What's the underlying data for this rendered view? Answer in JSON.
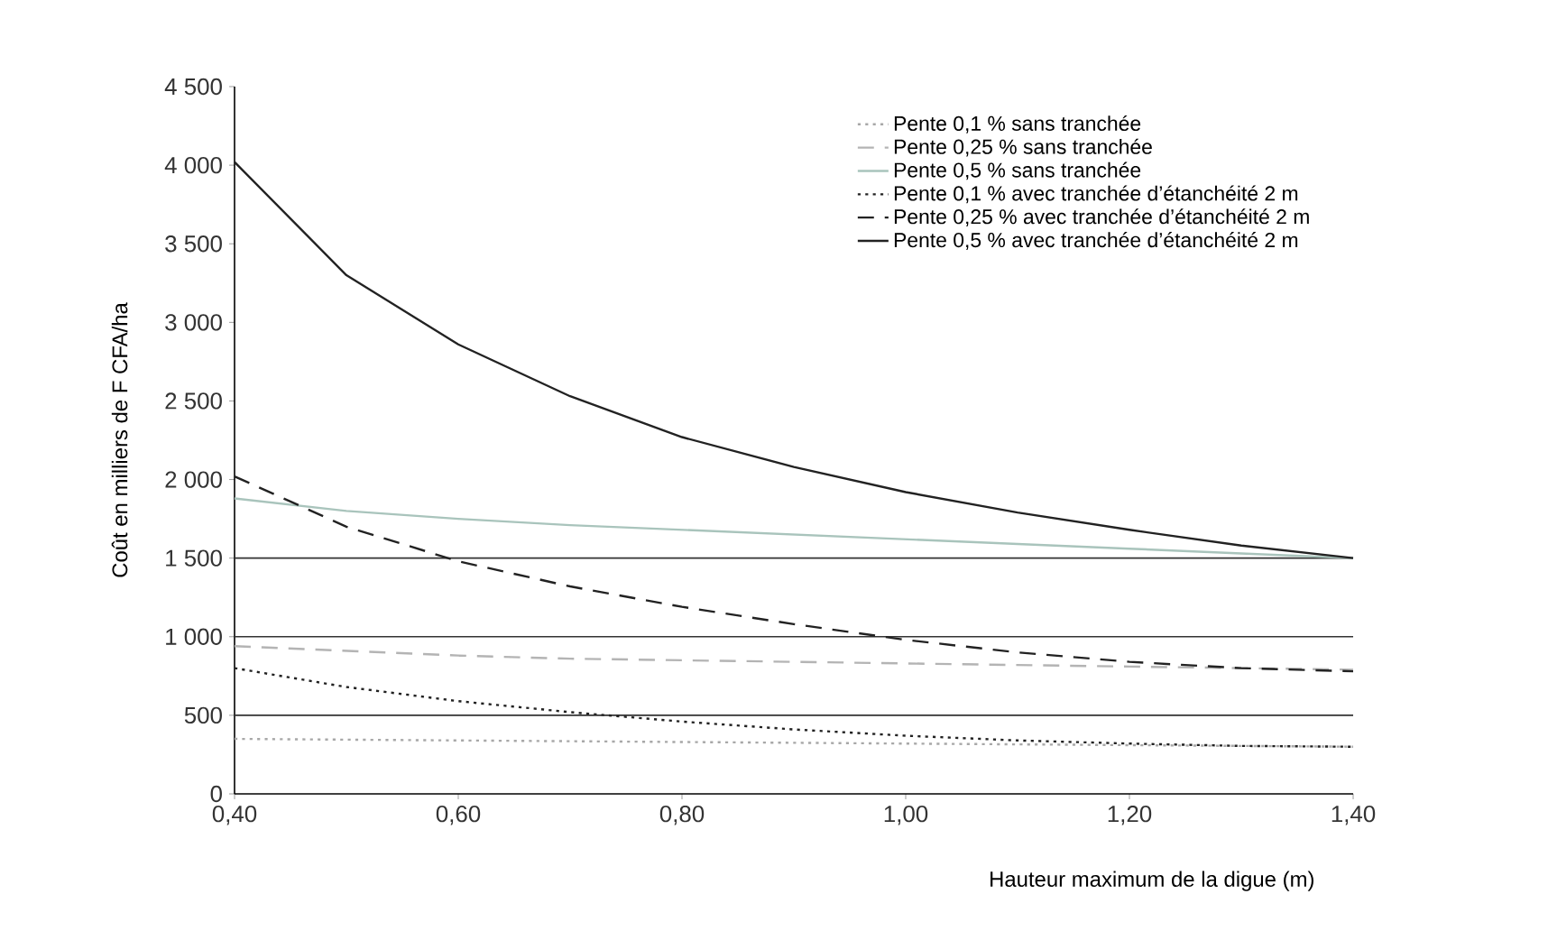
{
  "chart_data": {
    "type": "line",
    "xlabel": "Hauteur maximum de la digue (m)",
    "ylabel": "Coût en milliers de F CFA/ha",
    "x": [
      0.4,
      0.5,
      0.6,
      0.7,
      0.8,
      0.9,
      1.0,
      1.1,
      1.2,
      1.3,
      1.4
    ],
    "series": [
      {
        "name": "Pente 0,1 % sans tranchée",
        "color": "#a8a8a8",
        "line_style": "dotted",
        "values": [
          350,
          345,
          340,
          335,
          330,
          325,
          320,
          315,
          310,
          305,
          300
        ]
      },
      {
        "name": "Pente 0,25 % sans tranchée",
        "color": "#b4b4b4",
        "line_style": "dashed",
        "values": [
          940,
          910,
          880,
          860,
          850,
          840,
          830,
          820,
          810,
          800,
          790
        ]
      },
      {
        "name": "Pente 0,5 % sans tranchée",
        "color": "#a9c4bc",
        "line_style": "solid",
        "values": [
          1880,
          1800,
          1750,
          1710,
          1680,
          1650,
          1620,
          1590,
          1560,
          1530,
          1500
        ]
      },
      {
        "name": "Pente 0,1 % avec tranchée d’étanchéité 2 m",
        "color": "#222222",
        "line_style": "dotted",
        "values": [
          800,
          680,
          590,
          520,
          460,
          410,
          370,
          340,
          320,
          305,
          300
        ]
      },
      {
        "name": "Pente 0,25 % avec tranchée d’étanchéité 2 m",
        "color": "#222222",
        "line_style": "dashed",
        "values": [
          2020,
          1700,
          1480,
          1320,
          1190,
          1080,
          980,
          900,
          840,
          800,
          780
        ]
      },
      {
        "name": "Pente 0,5 % avec tranchée d’étanchéité 2 m",
        "color": "#222222",
        "line_style": "solid",
        "values": [
          4020,
          3300,
          2860,
          2530,
          2270,
          2080,
          1920,
          1790,
          1680,
          1580,
          1500
        ]
      }
    ],
    "xlim": [
      0.4,
      1.4
    ],
    "ylim": [
      0,
      4500
    ],
    "xticks": [
      {
        "value": 0.4,
        "label": "0,40"
      },
      {
        "value": 0.6,
        "label": "0,60"
      },
      {
        "value": 0.8,
        "label": "0,80"
      },
      {
        "value": 1.0,
        "label": "1,00"
      },
      {
        "value": 1.2,
        "label": "1,20"
      },
      {
        "value": 1.4,
        "label": "1,40"
      }
    ],
    "yticks": [
      0,
      500,
      {
        "value": 1000,
        "label": "1 000"
      },
      {
        "value": 1500,
        "label": "1 500"
      },
      {
        "value": 2000,
        "label": "2 000"
      },
      {
        "value": 2500,
        "label": "2 500"
      },
      {
        "value": 3000,
        "label": "3 000"
      },
      {
        "value": 3500,
        "label": "3 500"
      },
      {
        "value": 4000,
        "label": "4 000"
      },
      {
        "value": 4500,
        "label": "4 500"
      }
    ],
    "ref_lines": [
      {
        "axis": "y",
        "value": 500,
        "color": "#333333"
      },
      {
        "axis": "y",
        "value": 1000,
        "color": "#333333"
      },
      {
        "axis": "y",
        "value": 1500,
        "color": "#333333"
      }
    ],
    "legend": "top right",
    "marker": "none"
  }
}
